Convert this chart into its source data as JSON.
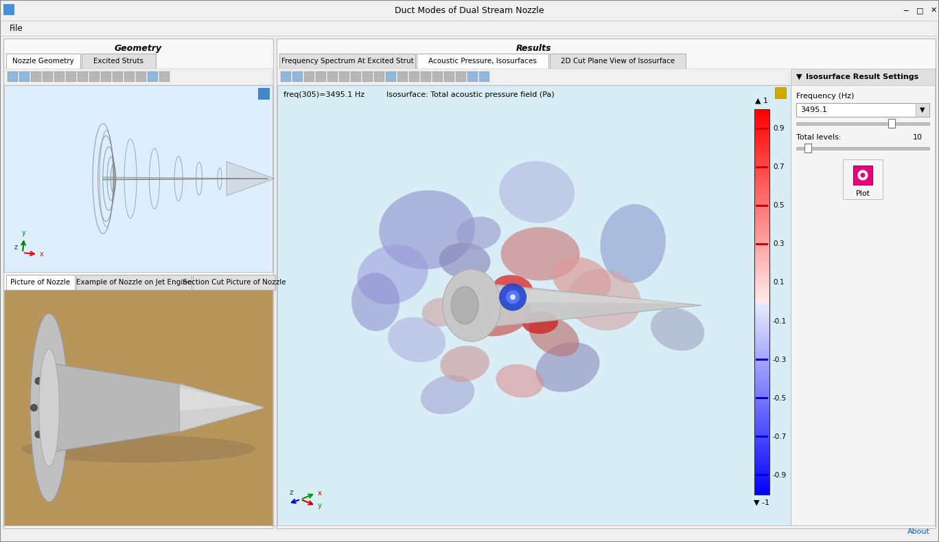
{
  "title": "Duct Modes of Dual Stream Nozzle",
  "menu_item": "File",
  "window_bg": "#f0f0f0",
  "geometry_panel_title": "Geometry",
  "results_panel_title": "Results",
  "geometry_tabs": [
    "Nozzle Geometry",
    "Excited Struts"
  ],
  "picture_tabs": [
    "Picture of Nozzle",
    "Example of Nozzle on Jet Engine",
    "Section Cut Picture of Nozzle"
  ],
  "results_tabs": [
    "Frequency Spectrum At Excited Strut",
    "Acoustic Pressure, Isosurfaces",
    "2D Cut Plane View of Isosurface"
  ],
  "freq_label": "freq(305)=3495.1 Hz",
  "isosurface_label": "Isosurface: Total acoustic pressure field (Pa)",
  "settings_panel_title": "Isosurface Result Settings",
  "freq_hz_label": "Frequency (Hz)",
  "freq_hz_value": "3495.1",
  "total_levels_label": "Total levels:",
  "total_levels_value": "10",
  "plot_button_label": "Plot",
  "about_label": "About",
  "plot_button_color": "#e8007c"
}
